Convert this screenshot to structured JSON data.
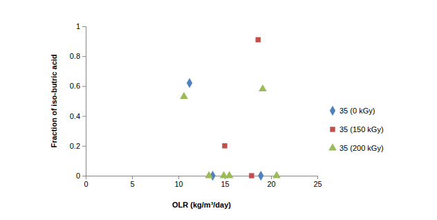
{
  "chart_data": {
    "type": "scatter",
    "x_label": "OLR (kg/m³/day)",
    "y_label": "Fraction of iso-butric acid",
    "xlim": [
      0,
      25
    ],
    "xticks": [
      0,
      5,
      10,
      15,
      20,
      25
    ],
    "ylim": [
      0,
      1
    ],
    "yticks": [
      0,
      0.2,
      0.4,
      0.6,
      0.8,
      1
    ],
    "grid": false,
    "legend": "right",
    "series": [
      {
        "name": "35 (0 kGy)",
        "color": "#4f81bd",
        "marker": "diamond",
        "x": [
          11.2,
          13.7,
          18.9
        ],
        "values": [
          0.62,
          0,
          0
        ]
      },
      {
        "name": "35 (150 kGy)",
        "color": "#c0504d",
        "marker": "square",
        "x": [
          15.0,
          17.9,
          18.6
        ],
        "values": [
          0.2,
          0,
          0.91
        ]
      },
      {
        "name": "35 (200 kGy)",
        "color": "#9bbb59",
        "marker": "triangle",
        "x": [
          10.6,
          13.3,
          14.9,
          15.5,
          19.1,
          20.6
        ],
        "values": [
          0.53,
          0,
          0,
          0,
          0.58,
          0
        ]
      }
    ]
  }
}
